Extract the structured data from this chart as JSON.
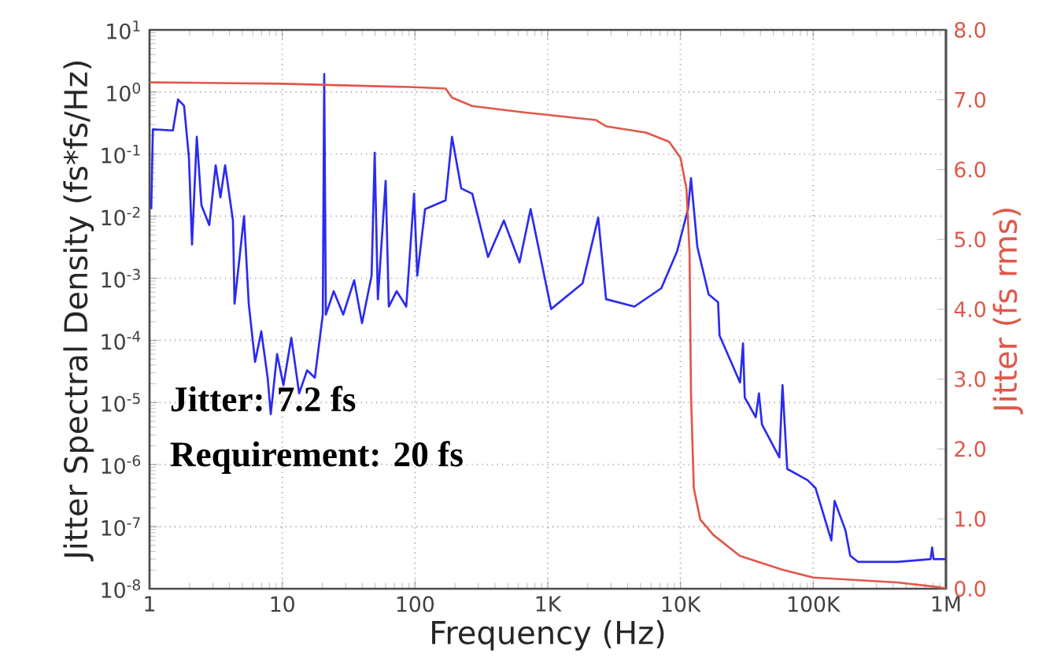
{
  "chart_data": {
    "type": "line",
    "xlabel": "Frequency (Hz)",
    "ylabel": "Jitter Spectral Density (fs*fs/Hz)",
    "y2label": "Jitter (fs rms)",
    "log": "xy",
    "grid": true,
    "xlim": [
      1,
      1000000
    ],
    "xticks": [
      1,
      10,
      100,
      {
        "value": 1000,
        "label": "1K"
      },
      {
        "value": 10000,
        "label": "10K"
      },
      {
        "value": 100000,
        "label": "100K"
      },
      {
        "value": 1000000,
        "label": "1M"
      }
    ],
    "ylim": [
      1e-08,
      10
    ],
    "yticks": [
      {
        "value": 1e-08,
        "label": "10$^{-8}$"
      },
      {
        "value": 1e-07,
        "label": "10$^{-7}$"
      },
      {
        "value": 1e-06,
        "label": "10$^{-6}$"
      },
      {
        "value": 1e-05,
        "label": "10$^{-5}$"
      },
      {
        "value": 0.0001,
        "label": "10$^{-4}$"
      },
      {
        "value": 0.001,
        "label": "10$^{-3}$"
      },
      {
        "value": 0.01,
        "label": "10$^{-2}$"
      },
      {
        "value": 0.1,
        "label": "10$^{-1}$"
      },
      {
        "value": 1,
        "label": "10$^{0}$"
      },
      {
        "value": 10,
        "label": "10$^{1}$"
      }
    ],
    "y2lim": [
      0,
      8
    ],
    "y2ticks": [
      {
        "value": 0,
        "label": "0.0"
      },
      {
        "value": 1,
        "label": "1.0"
      },
      {
        "value": 2,
        "label": "2.0"
      },
      {
        "value": 3,
        "label": "3.0"
      },
      {
        "value": 4,
        "label": "4.0"
      },
      {
        "value": 5,
        "label": "5.0"
      },
      {
        "value": 6,
        "label": "6.0"
      },
      {
        "value": 7,
        "label": "7.0"
      },
      {
        "value": 8,
        "label": "8.0"
      }
    ],
    "series": [
      {
        "color": "#2b2bf0",
        "x": [
          1.03,
          1.06,
          1.5,
          1.64,
          1.82,
          1.98,
          2.09,
          2.27,
          2.46,
          2.82,
          3.15,
          3.42,
          3.71,
          4.25,
          4.37,
          5.15,
          5.59,
          6.24,
          6.95,
          7.76,
          8.19,
          9.14,
          10.2,
          11.7,
          13.4,
          15.4,
          17.6,
          20.2,
          20.7,
          21.3,
          24.4,
          28.8,
          34.8,
          39.9,
          47.1,
          49.7,
          52.5,
          60.1,
          63.5,
          72.8,
          85.9,
          98.4,
          104,
          119,
          170,
          190,
          223,
          270,
          355,
          467,
          613,
          743,
          1060,
          1830,
          2400,
          2750,
          4500,
          7170,
          9420,
          11400,
          12000,
          13400,
          16300,
          19200,
          19700,
          28100,
          29600,
          30500,
          36900,
          39000,
          41100,
          55600,
          58700,
          63700,
          90800,
          104000,
          137000,
          145000,
          175000,
          190000,
          218000,
          431000,
          766000,
          787000,
          807000,
          1000000
        ],
        "values": [
          0.013,
          0.25,
          0.24,
          0.76,
          0.6,
          0.089,
          0.0035,
          0.19,
          0.015,
          0.0072,
          0.066,
          0.02,
          0.066,
          0.0085,
          0.00039,
          0.01,
          0.00039,
          4.5e-05,
          0.00014,
          2.5e-05,
          6.5e-06,
          6e-05,
          1.9e-05,
          0.00011,
          1.4e-05,
          3.3e-05,
          2.5e-05,
          0.00026,
          1.95,
          0.00026,
          0.00062,
          0.00026,
          0.00093,
          0.00019,
          0.0011,
          0.105,
          0.00046,
          0.037,
          0.00035,
          0.00062,
          0.00035,
          0.023,
          0.0011,
          0.013,
          0.018,
          0.19,
          0.028,
          0.023,
          0.0022,
          0.0085,
          0.0018,
          0.013,
          0.00032,
          0.00083,
          0.0095,
          0.00046,
          0.00035,
          0.00069,
          0.0027,
          0.013,
          0.041,
          0.0032,
          0.00055,
          0.00041,
          0.00012,
          2.1e-05,
          8.9e-05,
          1.2e-05,
          5.8e-06,
          1.4e-05,
          4.4e-06,
          1.3e-06,
          1.9e-05,
          8.5e-07,
          5.6e-07,
          4.2e-07,
          6e-08,
          2.6e-07,
          8.7e-08,
          3.4e-08,
          2.7e-08,
          2.7e-08,
          3e-08,
          4.6e-08,
          3e-08,
          3e-08
        ]
      },
      {
        "color": "#e0584a",
        "axis": "y2",
        "x": [
          1,
          10,
          100,
          170,
          190,
          270,
          660,
          2300,
          2750,
          5500,
          8200,
          10000,
          11100,
          11700,
          12000,
          12600,
          14100,
          17700,
          28000,
          59000,
          100000,
          430000,
          900000,
          1000000
        ],
        "values": [
          7.25,
          7.23,
          7.18,
          7.16,
          7.03,
          6.91,
          6.82,
          6.71,
          6.62,
          6.53,
          6.4,
          6.17,
          5.72,
          4.82,
          2.79,
          1.44,
          0.99,
          0.77,
          0.47,
          0.27,
          0.16,
          0.09,
          0.02,
          0.0
        ]
      }
    ],
    "annotations": [
      "Jitter: 7.2 fs",
      "Requirement: 20 fs"
    ]
  }
}
